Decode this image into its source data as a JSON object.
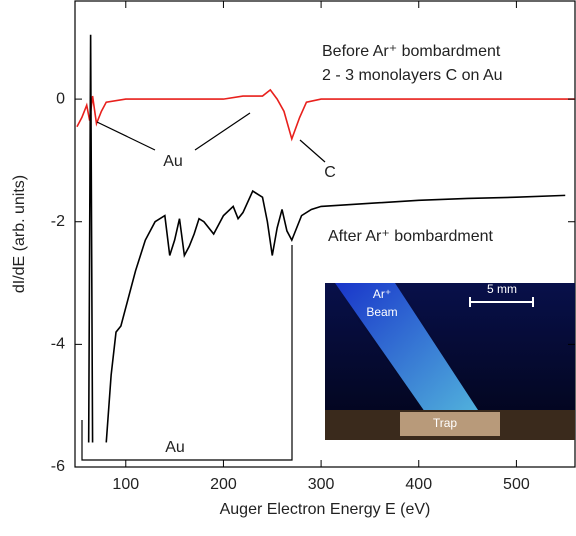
{
  "chart_data": {
    "type": "line",
    "xlabel": "Auger Electron Energy E (eV)",
    "ylabel": "dI/dE (arb. units)",
    "xlim": [
      48,
      560
    ],
    "ylim": [
      -6,
      1.6
    ],
    "xticks": [
      100,
      200,
      300,
      400,
      500
    ],
    "yticks": [
      -6,
      -4,
      -2,
      0
    ],
    "series": [
      {
        "name": "Before Ar⁺ bombardment",
        "color": "#e8201c",
        "x": [
          50,
          55,
          60,
          63,
          66,
          70,
          75,
          80,
          100,
          150,
          200,
          220,
          240,
          248,
          255,
          262,
          270,
          278,
          285,
          300,
          400,
          500,
          560
        ],
        "values": [
          -0.45,
          -0.3,
          -0.1,
          -0.35,
          0.05,
          -0.4,
          -0.2,
          -0.05,
          0,
          0,
          0,
          0.05,
          0.05,
          0.15,
          0,
          -0.2,
          -0.65,
          -0.3,
          -0.05,
          0,
          0,
          0,
          0
        ]
      },
      {
        "name": "After Ar⁺ bombardment",
        "color": "#000000",
        "x": [
          62,
          64,
          66,
          72,
          80,
          85,
          90,
          95,
          100,
          110,
          120,
          130,
          140,
          145,
          150,
          155,
          160,
          165,
          170,
          175,
          180,
          190,
          200,
          210,
          215,
          220,
          230,
          240,
          245,
          250,
          255,
          260,
          265,
          270,
          275,
          280,
          290,
          300,
          350,
          400,
          450,
          500,
          550
        ],
        "values": [
          -5.6,
          1.05,
          -5.6,
          null,
          -5.6,
          -4.5,
          -3.8,
          -3.7,
          -3.4,
          -2.8,
          -2.3,
          -2.0,
          -1.9,
          -2.55,
          -2.3,
          -1.95,
          -2.55,
          -2.4,
          -2.2,
          -1.95,
          -2.0,
          -2.2,
          -1.9,
          -1.75,
          -1.95,
          -1.85,
          -1.5,
          -1.6,
          -2.0,
          -2.55,
          -2.1,
          -1.8,
          -2.15,
          -2.3,
          -2.1,
          -1.9,
          -1.8,
          -1.75,
          -1.7,
          -1.65,
          -1.62,
          -1.6,
          -1.57
        ]
      }
    ],
    "annotations": [
      "2 - 3 monolayers C on Au",
      "Au",
      "C",
      "Au"
    ],
    "inset": {
      "beam_label": "Ar⁺",
      "beam_label2": "Beam",
      "scale": "5 mm",
      "trap": "Trap"
    }
  }
}
